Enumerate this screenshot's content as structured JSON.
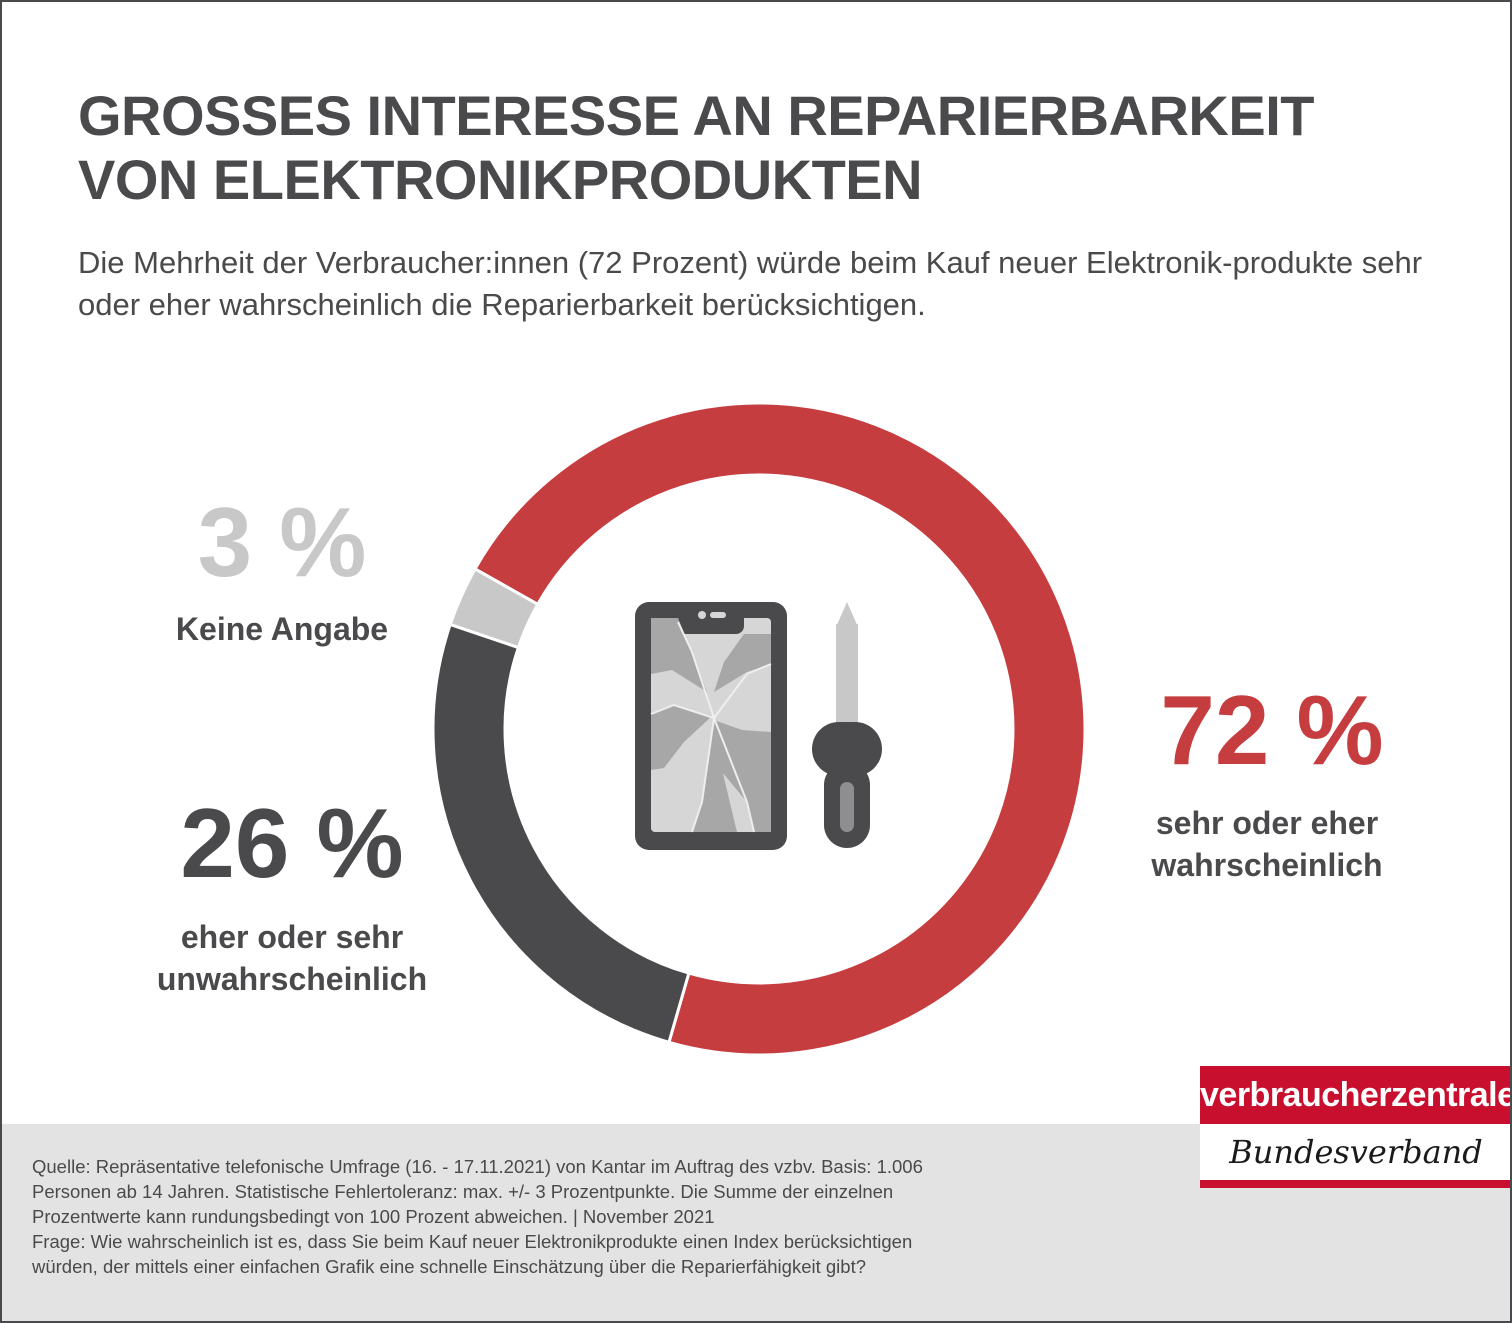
{
  "header": {
    "title": "GROSSES INTERESSE AN REPARIERBARKEIT VON ELEKTRONIKPRODUKTEN",
    "subtitle": "Die Mehrheit der Verbraucher:innen (72 Prozent) würde beim Kauf neuer Elektronik-produkte sehr oder eher wahrscheinlich die Reparierbarkeit berücksichtigen."
  },
  "chart_data": {
    "type": "pie",
    "variant": "donut",
    "unit": "%",
    "start": "top-left, clockwise",
    "slices": [
      {
        "label": "sehr oder eher wahrscheinlich",
        "value": 72,
        "display": "72 %",
        "color": "#c63d40"
      },
      {
        "label": "eher oder sehr unwahrscheinlich",
        "value": 26,
        "display": "26 %",
        "color": "#4a4a4c"
      },
      {
        "label": "Keine Angabe",
        "value": 3,
        "display": "3 %",
        "color": "#c8c8c8"
      }
    ],
    "center_icon": "broken-phone-and-screwdriver-icon"
  },
  "footer": {
    "source_lines": [
      "Quelle: Repräsentative telefonische Umfrage (16. - 17.11.2021) von Kantar im Auftrag des vzbv. Basis: 1.006",
      "Personen ab 14 Jahren. Statistische Fehlertoleranz: max. +/- 3 Prozentpunkte. Die Summe der einzelnen",
      "Prozentwerte kann rundungsbedingt von 100 Prozent abweichen. | November 2021",
      "Frage: Wie wahrscheinlich ist es, dass Sie beim Kauf neuer Elektronikprodukte einen Index berücksichtigen",
      "würden, der mittels einer einfachen Grafik eine schnelle Einschätzung über die Reparierfähigkeit gibt?"
    ]
  },
  "logo": {
    "top": "verbraucherzentrale",
    "bottom": "Bundesverband",
    "color": "#c8102e"
  }
}
